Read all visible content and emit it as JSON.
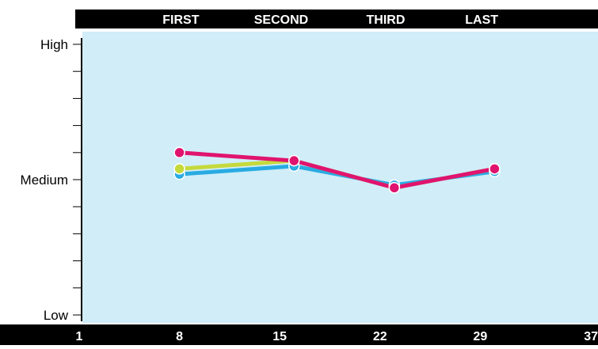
{
  "chart_data": {
    "type": "line",
    "title": "",
    "xlabel": "",
    "ylabel": "",
    "grid": false,
    "legend": "none",
    "phase_labels": [
      "FIRST",
      "SECOND",
      "THIRD",
      "LAST"
    ],
    "phase_centers": [
      8.1,
      15.1,
      22.4,
      29.1
    ],
    "x_tick_labels": [
      "1",
      "8",
      "15",
      "22",
      "29",
      "37"
    ],
    "x_tick_values": [
      1,
      8,
      15,
      22,
      29,
      37
    ],
    "xlim": [
      1,
      37
    ],
    "y_tick_labels": [
      "High",
      "Medium",
      "Low"
    ],
    "y_tick_values": [
      10,
      5,
      0
    ],
    "ylim": [
      0,
      10
    ],
    "x": [
      8,
      16,
      23,
      30
    ],
    "series": [
      {
        "values": [
          5.2,
          5.5,
          4.8,
          5.3
        ],
        "color": "#29abe2"
      },
      {
        "values": [
          5.4,
          5.7,
          4.7,
          5.4
        ],
        "color": "#c5d93b"
      },
      {
        "values": [
          6.0,
          5.7,
          4.7,
          5.4
        ],
        "color": "#e0146e"
      }
    ],
    "colors": {
      "plot_background": "#d0edf8",
      "header_bar": "#000000",
      "header_text": "#ffffff",
      "axis": "#000000",
      "marker_outline": "#ffffff"
    }
  }
}
